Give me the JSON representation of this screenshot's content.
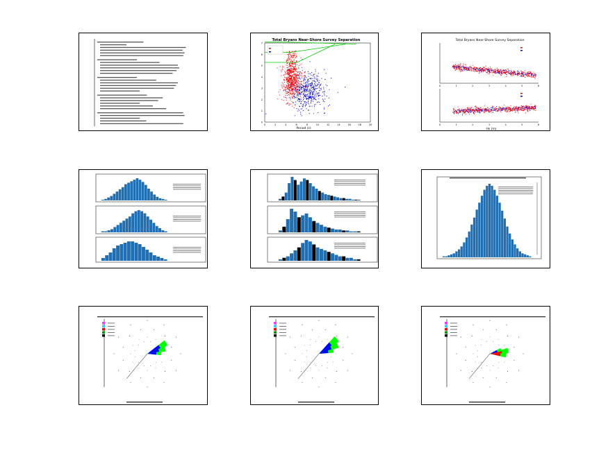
{
  "page": {
    "thumbnails": [
      {
        "id": "summary-text",
        "type": "table"
      },
      {
        "id": "scatter-separation",
        "type": "scatter",
        "title": "Total Bryans Near-Shore Survey Separation"
      },
      {
        "id": "stacked-scatter",
        "type": "scatter",
        "title": "Total Bryans Near-Shore Survey Separation"
      },
      {
        "id": "histograms-a",
        "type": "bar"
      },
      {
        "id": "histograms-b",
        "type": "bar"
      },
      {
        "id": "histogram-c",
        "type": "bar"
      },
      {
        "id": "rose-1",
        "type": "pie"
      },
      {
        "id": "rose-2",
        "type": "pie"
      },
      {
        "id": "rose-3",
        "type": "pie"
      }
    ]
  },
  "chart_data": [
    {
      "type": "scatter",
      "title": "Total Bryans Near-Shore Survey Separation",
      "xlabel": "Period (s)",
      "ylabel": "",
      "xlim": [
        0,
        30
      ],
      "ylim": [
        0,
        7
      ],
      "x_ticks": [
        "0",
        "2",
        "4",
        "6",
        "8",
        "10",
        "12",
        "14",
        "16",
        "18",
        "20"
      ],
      "y_ticks": [
        "0",
        "1",
        "2",
        "3",
        "4",
        "5",
        "6",
        "7"
      ],
      "series": [
        {
          "color": "#ff0000",
          "center_x": 7.5,
          "center_y": 3.6,
          "spread_x": 2.5,
          "spread_y": 1.2
        },
        {
          "color": "#0000cc",
          "center_x": 12,
          "center_y": 2.8,
          "spread_x": 5,
          "spread_y": 1.2
        }
      ]
    },
    {
      "type": "scatter",
      "title": "Total Bryans Near-Shore Survey Separation",
      "xlabel": "Hs (m)",
      "x_ticks": [
        "0",
        "1",
        "2",
        "3",
        "4",
        "5",
        "6"
      ],
      "series": [
        {
          "color": "#ff0000"
        },
        {
          "color": "#0000cc"
        }
      ]
    },
    {
      "type": "bar",
      "bar_color": "#1f6fb2",
      "subplots": [
        {
          "values": [
            1,
            2,
            4,
            6,
            9,
            12,
            15,
            18,
            22,
            24,
            26,
            28,
            30,
            28,
            25,
            21,
            16,
            12,
            8,
            5,
            3,
            2,
            1
          ]
        },
        {
          "values": [
            1,
            1,
            2,
            3,
            5,
            7,
            9,
            11,
            13,
            15,
            18,
            20,
            21,
            20,
            18,
            15,
            12,
            9,
            6,
            4,
            2,
            1
          ]
        },
        {
          "values": [
            2,
            4,
            6,
            9,
            11,
            12,
            13,
            14,
            14,
            13,
            12,
            10,
            8,
            6,
            4,
            3,
            2,
            1
          ]
        }
      ]
    },
    {
      "type": "bar",
      "bar_color": "#1f6fb2",
      "subplots": [
        {
          "values": [
            2,
            5,
            10,
            22,
            30,
            26,
            20,
            24,
            28,
            26,
            22,
            18,
            15,
            12,
            10,
            8,
            7,
            6,
            5,
            4,
            3,
            3,
            2,
            2,
            1,
            1,
            1
          ]
        },
        {
          "values": [
            2,
            6,
            14,
            25,
            22,
            16,
            18,
            20,
            16,
            12,
            10,
            8,
            6,
            5,
            4,
            3,
            3,
            2,
            2,
            1,
            1,
            1
          ]
        },
        {
          "values": [
            1,
            2,
            3,
            5,
            7,
            9,
            12,
            14,
            13,
            11,
            9,
            8,
            7,
            6,
            5,
            4,
            3,
            3,
            2,
            2,
            1,
            1
          ]
        }
      ]
    },
    {
      "type": "bar",
      "bar_color": "#1f6fb2",
      "values": [
        1,
        1,
        2,
        3,
        4,
        6,
        8,
        11,
        15,
        20,
        26,
        33,
        40,
        48,
        55,
        62,
        68,
        72,
        74,
        72,
        68,
        62,
        55,
        47,
        39,
        31,
        24,
        18,
        13,
        9,
        6,
        4,
        3,
        2,
        1
      ]
    },
    {
      "type": "pie",
      "legend_colors": [
        "#ff33ff",
        "#33ccff",
        "#ff0000",
        "#009900",
        "#000000"
      ],
      "petals": [
        {
          "angle_deg": 60,
          "length": 0.82,
          "colors": [
            "#00ff00",
            "#0000ff"
          ]
        },
        {
          "angle_deg": 75,
          "length": 0.7,
          "colors": [
            "#00ff00",
            "#0000ff"
          ]
        },
        {
          "angle_deg": 88,
          "length": 0.52,
          "colors": [
            "#00ff00",
            "#0000ff"
          ]
        }
      ]
    },
    {
      "type": "pie",
      "legend_colors": [
        "#ff33ff",
        "#33ccff",
        "#ff0000",
        "#009900",
        "#000000"
      ],
      "petals": [
        {
          "angle_deg": 50,
          "length": 0.88,
          "colors": [
            "#00ff00",
            "#0000ff"
          ]
        },
        {
          "angle_deg": 65,
          "length": 0.78,
          "colors": [
            "#00ff00",
            "#0000ff"
          ]
        },
        {
          "angle_deg": 78,
          "length": 0.55,
          "colors": [
            "#00ff00",
            "#0000ff"
          ]
        }
      ]
    },
    {
      "type": "pie",
      "legend_colors": [
        "#ff33ff",
        "#33ccff",
        "#ff0000",
        "#009900",
        "#000000"
      ],
      "petals": [
        {
          "angle_deg": 80,
          "length": 0.7,
          "colors": [
            "#00ff00",
            "#ff0000"
          ]
        },
        {
          "angle_deg": 95,
          "length": 0.62,
          "colors": [
            "#00ff00",
            "#ff0000"
          ]
        },
        {
          "angle_deg": 70,
          "length": 0.45,
          "colors": [
            "#00ff00",
            "#0000ff"
          ]
        }
      ]
    }
  ]
}
